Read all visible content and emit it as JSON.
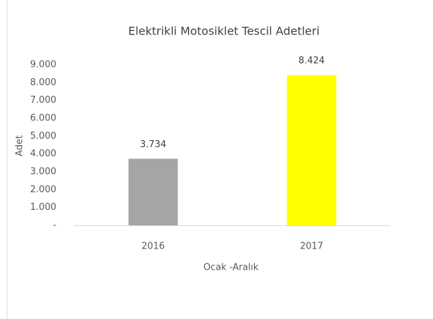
{
  "chart_data": {
    "type": "bar",
    "title": "Elektrikli Motosiklet Tescil Adetleri",
    "categories": [
      "2016",
      "2017"
    ],
    "values": [
      3734,
      8424
    ],
    "value_labels": [
      "3.734",
      "8.424"
    ],
    "colors": [
      "#a5a5a5",
      "#ffff00"
    ],
    "x_label": "Ocak -Aralık",
    "y_label": "Adet",
    "ylim": [
      0,
      9000
    ],
    "yticks": [
      {
        "value": 0,
        "label": "-"
      },
      {
        "value": 1000,
        "label": "1.000"
      },
      {
        "value": 2000,
        "label": "2.000"
      },
      {
        "value": 3000,
        "label": "3.000"
      },
      {
        "value": 4000,
        "label": "4.000"
      },
      {
        "value": 5000,
        "label": "5.000"
      },
      {
        "value": 6000,
        "label": "6.000"
      },
      {
        "value": 7000,
        "label": "7.000"
      },
      {
        "value": 8000,
        "label": "8.000"
      },
      {
        "value": 9000,
        "label": "9.000"
      }
    ],
    "grid": false
  }
}
